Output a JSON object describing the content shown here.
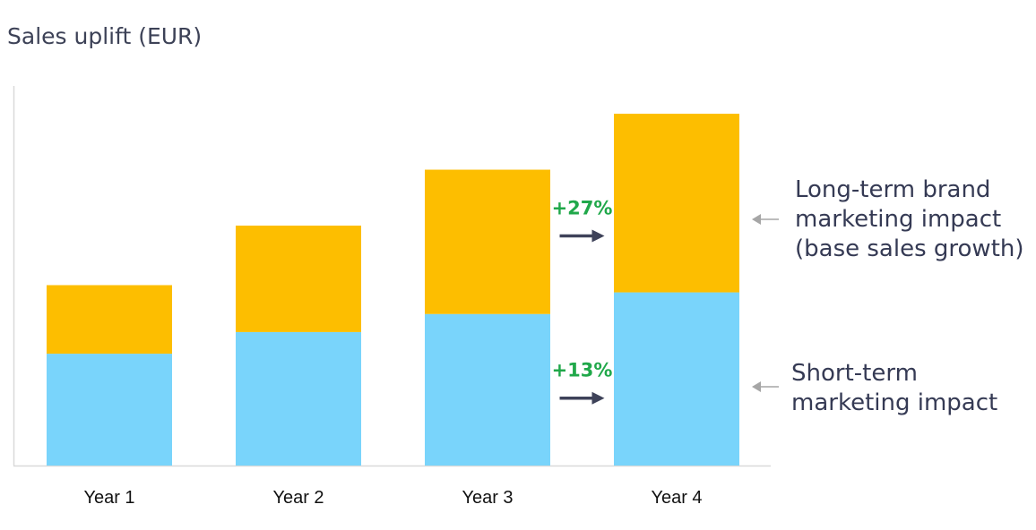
{
  "chart_data": {
    "type": "bar",
    "stacked": true,
    "title": "Sales uplift (EUR)",
    "xlabel": "",
    "ylabel": "",
    "categories": [
      "Year 1",
      "Year 2",
      "Year 3",
      "Year 4"
    ],
    "ylim": [
      0,
      100
    ],
    "grid": false,
    "series": [
      {
        "name": "Short-term marketing impact",
        "color": "#79d4fb",
        "values": [
          31,
          37,
          42,
          48
        ]
      },
      {
        "name": "Long-term brand marketing impact (base sales growth)",
        "color": "#fdbe00",
        "values": [
          19,
          29.5,
          40,
          49.5
        ]
      }
    ],
    "growth_labels": [
      {
        "text": "+27%",
        "series": 1,
        "color": "#20a84a"
      },
      {
        "text": "+13%",
        "series": 0,
        "color": "#20a84a"
      }
    ],
    "annotations": [
      {
        "series": 1,
        "lines": [
          "Long-term brand",
          "marketing impact",
          "(base sales growth)"
        ]
      },
      {
        "series": 0,
        "lines": [
          "Short-term",
          "marketing impact"
        ]
      }
    ],
    "arrow_color": "#3e4259",
    "pointer_color": "#a6a6a6"
  }
}
